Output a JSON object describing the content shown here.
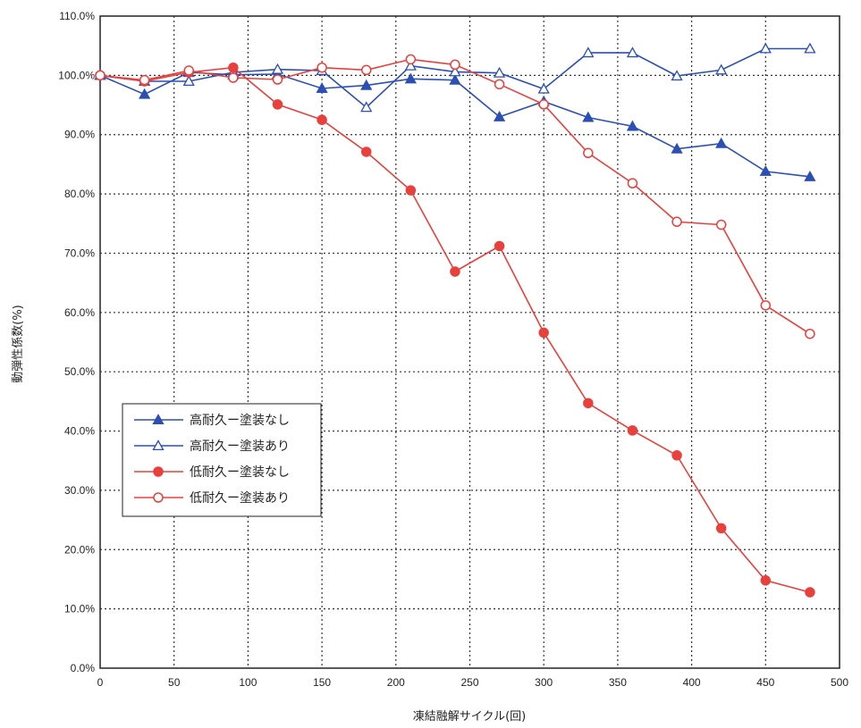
{
  "chart_data": {
    "type": "line",
    "title": "",
    "xlabel": "凍結融解サイクル(回)",
    "ylabel": "動弾性係数(%)",
    "xlim": [
      0,
      500
    ],
    "ylim": [
      0,
      110
    ],
    "x_ticks": [
      "0",
      "50",
      "100",
      "150",
      "200",
      "250",
      "300",
      "350",
      "400",
      "450",
      "500"
    ],
    "y_ticks": [
      "0.0%",
      "10.0%",
      "20.0%",
      "30.0%",
      "40.0%",
      "50.0%",
      "60.0%",
      "70.0%",
      "80.0%",
      "90.0%",
      "100.0%",
      "110.0%"
    ],
    "grid": true,
    "legend_position": "lower-left",
    "series": [
      {
        "name": "高耐久ー塗装なし",
        "color": "#2b4fb3",
        "marker": "filled-triangle",
        "x": [
          0,
          30,
          60,
          90,
          120,
          150,
          180,
          210,
          240,
          270,
          300,
          330,
          360,
          390,
          420,
          450,
          480
        ],
        "y": [
          100.0,
          96.8,
          100.5,
          100.1,
          100.2,
          97.8,
          98.3,
          99.4,
          99.2,
          93.0,
          95.6,
          92.9,
          91.4,
          87.6,
          88.5,
          83.8,
          82.9
        ]
      },
      {
        "name": "高耐久ー塗装あり",
        "color": "#2b4fb3",
        "marker": "open-triangle",
        "x": [
          0,
          30,
          60,
          90,
          120,
          150,
          180,
          210,
          240,
          270,
          300,
          330,
          360,
          390,
          420,
          450,
          480
        ],
        "y": [
          100.0,
          99.0,
          99.0,
          100.5,
          101.0,
          100.8,
          94.6,
          101.6,
          100.6,
          100.4,
          97.7,
          103.8,
          103.8,
          99.9,
          100.9,
          104.5,
          104.5
        ]
      },
      {
        "name": "低耐久ー塗装なし",
        "color": "#e8403c",
        "marker": "filled-circle",
        "x": [
          0,
          30,
          60,
          90,
          120,
          150,
          180,
          210,
          240,
          270,
          300,
          330,
          360,
          390,
          420,
          450,
          480
        ],
        "y": [
          100.0,
          99.0,
          100.5,
          101.3,
          95.1,
          92.5,
          87.1,
          80.6,
          66.9,
          71.2,
          56.6,
          44.7,
          40.1,
          35.9,
          23.6,
          14.8,
          12.8
        ]
      },
      {
        "name": "低耐久ー塗装あり",
        "color": "#e8403c",
        "marker": "open-circle",
        "x": [
          0,
          30,
          60,
          90,
          120,
          150,
          180,
          210,
          240,
          270,
          300,
          330,
          360,
          390,
          420,
          450,
          480
        ],
        "y": [
          100.0,
          99.2,
          100.8,
          99.6,
          99.3,
          101.3,
          100.9,
          102.7,
          101.8,
          98.5,
          95.1,
          86.9,
          81.8,
          75.3,
          74.8,
          61.2,
          56.4
        ]
      }
    ]
  }
}
